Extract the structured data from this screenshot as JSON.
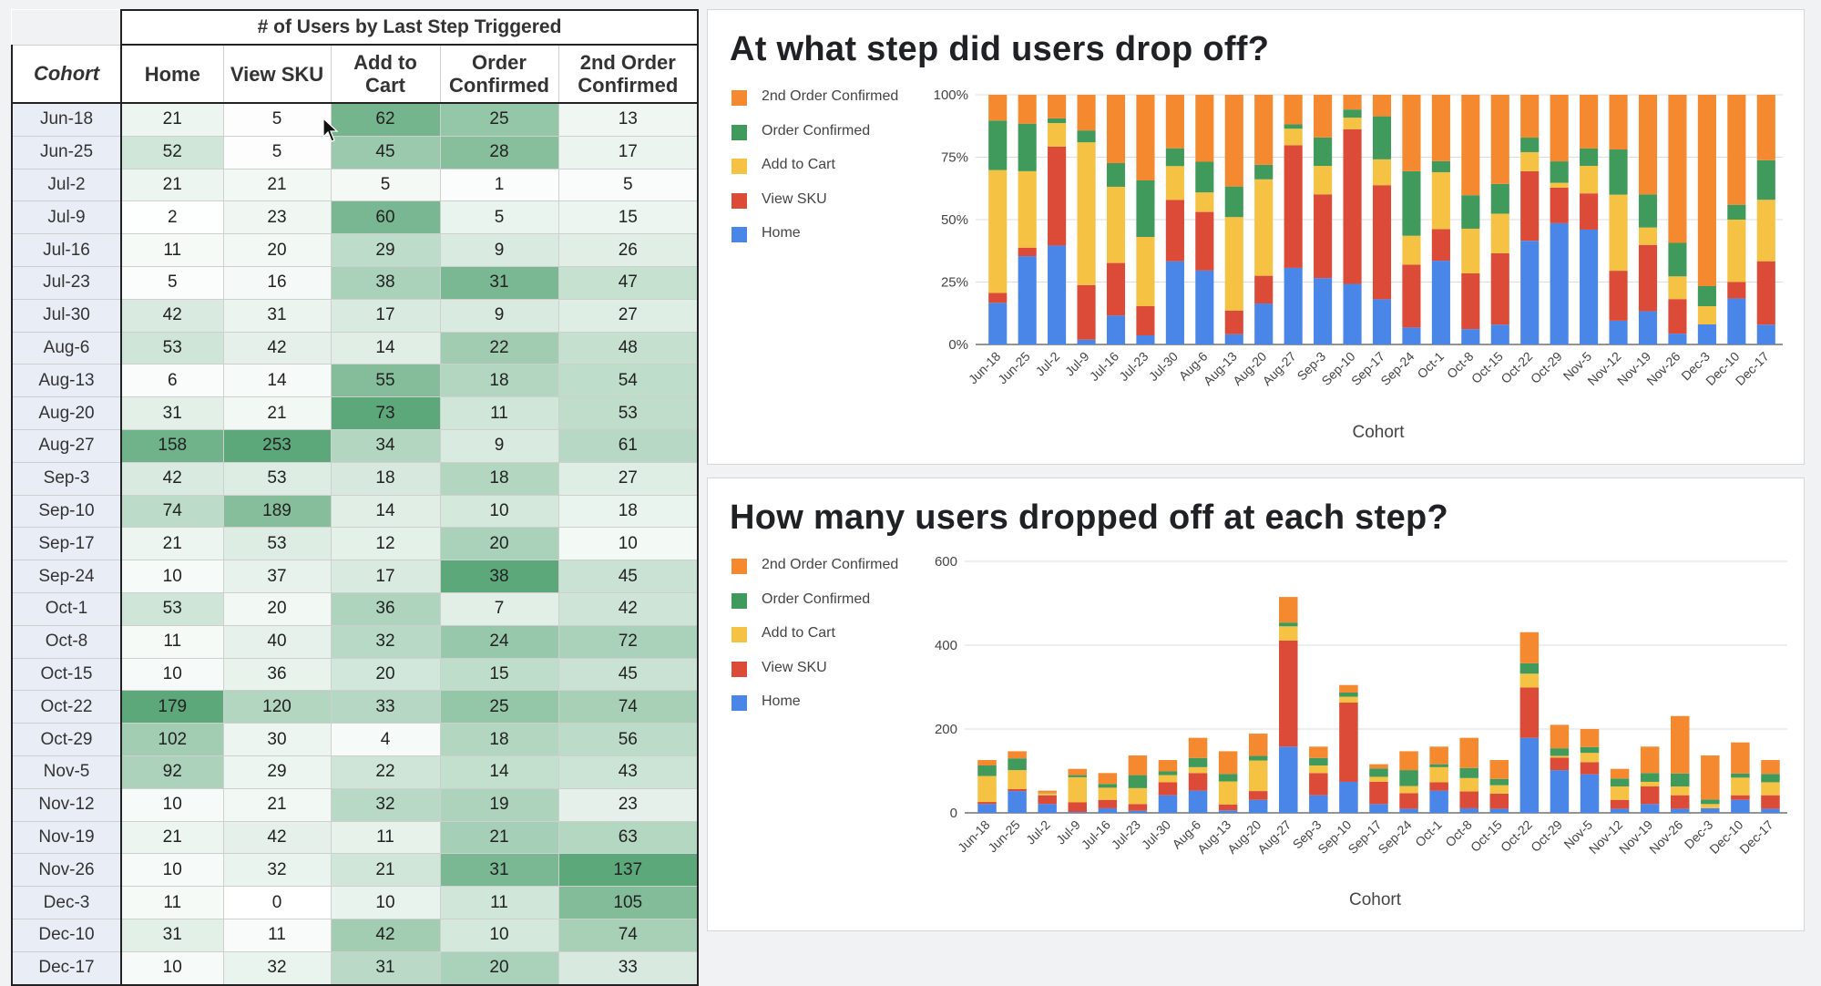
{
  "table": {
    "title": "# of Users by Last Step Triggered",
    "headers": [
      "Cohort",
      "Home",
      "View SKU",
      "Add to Cart",
      "Order Confirmed",
      "2nd Order Confirmed"
    ],
    "rows": [
      [
        "Jun-18",
        "21",
        "5",
        "62",
        "25",
        "13"
      ],
      [
        "Jun-25",
        "52",
        "5",
        "45",
        "28",
        "17"
      ],
      [
        "Jul-2",
        "21",
        "21",
        "5",
        "1",
        "5"
      ],
      [
        "Jul-9",
        "2",
        "23",
        "60",
        "5",
        "15"
      ],
      [
        "Jul-16",
        "11",
        "20",
        "29",
        "9",
        "26"
      ],
      [
        "Jul-23",
        "5",
        "16",
        "38",
        "31",
        "47"
      ],
      [
        "Jul-30",
        "42",
        "31",
        "17",
        "9",
        "27"
      ],
      [
        "Aug-6",
        "53",
        "42",
        "14",
        "22",
        "48"
      ],
      [
        "Aug-13",
        "6",
        "14",
        "55",
        "18",
        "54"
      ],
      [
        "Aug-20",
        "31",
        "21",
        "73",
        "11",
        "53"
      ],
      [
        "Aug-27",
        "158",
        "253",
        "34",
        "9",
        "61"
      ],
      [
        "Sep-3",
        "42",
        "53",
        "18",
        "18",
        "27"
      ],
      [
        "Sep-10",
        "74",
        "189",
        "14",
        "10",
        "18"
      ],
      [
        "Sep-17",
        "21",
        "53",
        "12",
        "20",
        "10"
      ],
      [
        "Sep-24",
        "10",
        "37",
        "17",
        "38",
        "45"
      ],
      [
        "Oct-1",
        "53",
        "20",
        "36",
        "7",
        "42"
      ],
      [
        "Oct-8",
        "11",
        "40",
        "32",
        "24",
        "72"
      ],
      [
        "Oct-15",
        "10",
        "36",
        "20",
        "15",
        "45"
      ],
      [
        "Oct-22",
        "179",
        "120",
        "33",
        "25",
        "74"
      ],
      [
        "Oct-29",
        "102",
        "30",
        "4",
        "18",
        "56"
      ],
      [
        "Nov-5",
        "92",
        "29",
        "22",
        "14",
        "43"
      ],
      [
        "Nov-12",
        "10",
        "21",
        "32",
        "19",
        "23"
      ],
      [
        "Nov-19",
        "21",
        "42",
        "11",
        "21",
        "63"
      ],
      [
        "Nov-26",
        "10",
        "32",
        "21",
        "31",
        "137"
      ],
      [
        "Dec-3",
        "11",
        "0",
        "10",
        "11",
        "105"
      ],
      [
        "Dec-10",
        "31",
        "11",
        "42",
        "10",
        "74"
      ],
      [
        "Dec-17",
        "10",
        "32",
        "31",
        "20",
        "33"
      ]
    ]
  },
  "colors": {
    "home": "#4a86e8",
    "view_sku": "#db4b37",
    "add_to_cart": "#f5c244",
    "order_confirmed": "#3f9a5c",
    "second_order_confirmed": "#f5892f",
    "cell_heat": "#54a373"
  },
  "chart_data": [
    {
      "type": "bar",
      "stacked": true,
      "normalized": true,
      "title": "At what step did users drop off?",
      "xlabel": "Cohort",
      "ylabel": "",
      "ylim": [
        0,
        100
      ],
      "yticks": [
        "0%",
        "25%",
        "50%",
        "75%",
        "100%"
      ],
      "legend_position": "left",
      "grid": true,
      "categories": [
        "Jun-18",
        "Jun-25",
        "Jul-2",
        "Jul-9",
        "Jul-16",
        "Jul-23",
        "Jul-30",
        "Aug-6",
        "Aug-13",
        "Aug-20",
        "Aug-27",
        "Sep-3",
        "Sep-10",
        "Sep-17",
        "Sep-24",
        "Oct-1",
        "Oct-8",
        "Oct-15",
        "Oct-22",
        "Oct-29",
        "Nov-5",
        "Nov-12",
        "Nov-19",
        "Nov-26",
        "Dec-3",
        "Dec-10",
        "Dec-17"
      ],
      "series": [
        {
          "name": "Home",
          "values": [
            21,
            52,
            21,
            2,
            11,
            5,
            42,
            53,
            6,
            31,
            158,
            42,
            74,
            21,
            10,
            53,
            11,
            10,
            179,
            102,
            92,
            10,
            21,
            10,
            11,
            31,
            10
          ]
        },
        {
          "name": "View SKU",
          "values": [
            5,
            5,
            21,
            23,
            20,
            16,
            31,
            42,
            14,
            21,
            253,
            53,
            189,
            53,
            37,
            20,
            40,
            36,
            120,
            30,
            29,
            21,
            42,
            32,
            0,
            11,
            32
          ]
        },
        {
          "name": "Add to Cart",
          "values": [
            62,
            45,
            5,
            60,
            29,
            38,
            17,
            14,
            55,
            73,
            34,
            18,
            14,
            12,
            17,
            36,
            32,
            20,
            33,
            4,
            22,
            32,
            11,
            21,
            10,
            42,
            31
          ]
        },
        {
          "name": "Order Confirmed",
          "values": [
            25,
            28,
            1,
            5,
            9,
            31,
            9,
            22,
            18,
            11,
            9,
            18,
            10,
            20,
            38,
            7,
            24,
            15,
            25,
            18,
            14,
            19,
            21,
            31,
            11,
            10,
            20
          ]
        },
        {
          "name": "2nd Order Confirmed",
          "values": [
            13,
            17,
            5,
            15,
            26,
            47,
            27,
            48,
            54,
            53,
            61,
            27,
            18,
            10,
            45,
            42,
            72,
            45,
            74,
            56,
            43,
            23,
            63,
            137,
            105,
            74,
            33
          ]
        }
      ]
    },
    {
      "type": "bar",
      "stacked": true,
      "normalized": false,
      "title": "How many users dropped off at each step?",
      "xlabel": "Cohort",
      "ylabel": "",
      "ylim": [
        0,
        600
      ],
      "yticks": [
        "0",
        "200",
        "400",
        "600"
      ],
      "legend_position": "left",
      "grid": true,
      "categories": [
        "Jun-18",
        "Jun-25",
        "Jul-2",
        "Jul-9",
        "Jul-16",
        "Jul-23",
        "Jul-30",
        "Aug-6",
        "Aug-13",
        "Aug-20",
        "Aug-27",
        "Sep-3",
        "Sep-10",
        "Sep-17",
        "Sep-24",
        "Oct-1",
        "Oct-8",
        "Oct-15",
        "Oct-22",
        "Oct-29",
        "Nov-5",
        "Nov-12",
        "Nov-19",
        "Nov-26",
        "Dec-3",
        "Dec-10",
        "Dec-17"
      ],
      "series": [
        {
          "name": "Home",
          "values": [
            21,
            52,
            21,
            2,
            11,
            5,
            42,
            53,
            6,
            31,
            158,
            42,
            74,
            21,
            10,
            53,
            11,
            10,
            179,
            102,
            92,
            10,
            21,
            10,
            11,
            31,
            10
          ]
        },
        {
          "name": "View SKU",
          "values": [
            5,
            5,
            21,
            23,
            20,
            16,
            31,
            42,
            14,
            21,
            253,
            53,
            189,
            53,
            37,
            20,
            40,
            36,
            120,
            30,
            29,
            21,
            42,
            32,
            0,
            11,
            32
          ]
        },
        {
          "name": "Add to Cart",
          "values": [
            62,
            45,
            5,
            60,
            29,
            38,
            17,
            14,
            55,
            73,
            34,
            18,
            14,
            12,
            17,
            36,
            32,
            20,
            33,
            4,
            22,
            32,
            11,
            21,
            10,
            42,
            31
          ]
        },
        {
          "name": "Order Confirmed",
          "values": [
            25,
            28,
            1,
            5,
            9,
            31,
            9,
            22,
            18,
            11,
            9,
            18,
            10,
            20,
            38,
            7,
            24,
            15,
            25,
            18,
            14,
            19,
            21,
            31,
            11,
            10,
            20
          ]
        },
        {
          "name": "2nd Order Confirmed",
          "values": [
            13,
            17,
            5,
            15,
            26,
            47,
            27,
            48,
            54,
            53,
            61,
            27,
            18,
            10,
            45,
            42,
            72,
            45,
            74,
            56,
            43,
            23,
            63,
            137,
            105,
            74,
            33
          ]
        }
      ]
    }
  ],
  "legend_order": [
    "2nd Order Confirmed",
    "Order Confirmed",
    "Add to Cart",
    "View SKU",
    "Home"
  ]
}
